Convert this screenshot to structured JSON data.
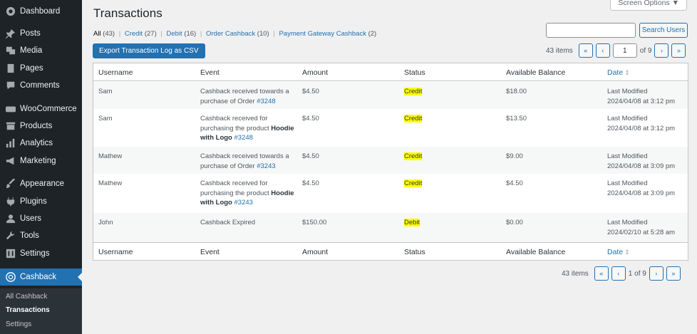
{
  "sidebar": {
    "items": [
      {
        "label": "Dashboard",
        "icon": "dashboard-icon"
      },
      {
        "label": "Posts",
        "icon": "pin-icon"
      },
      {
        "label": "Media",
        "icon": "media-icon"
      },
      {
        "label": "Pages",
        "icon": "page-icon"
      },
      {
        "label": "Comments",
        "icon": "comment-icon"
      },
      {
        "label": "WooCommerce",
        "icon": "woo-icon"
      },
      {
        "label": "Products",
        "icon": "archive-icon"
      },
      {
        "label": "Analytics",
        "icon": "bar-chart-icon"
      },
      {
        "label": "Marketing",
        "icon": "megaphone-icon"
      },
      {
        "label": "Appearance",
        "icon": "brush-icon"
      },
      {
        "label": "Plugins",
        "icon": "plug-icon"
      },
      {
        "label": "Users",
        "icon": "user-icon"
      },
      {
        "label": "Tools",
        "icon": "wrench-icon"
      },
      {
        "label": "Settings",
        "icon": "settings-icon"
      },
      {
        "label": "Cashback",
        "icon": "cashback-icon"
      }
    ],
    "submenu": [
      "All Cashback",
      "Transactions",
      "Settings"
    ]
  },
  "page": {
    "title": "Transactions",
    "screen_options": "Screen Options ▼",
    "export_button": "Export Transaction Log as CSV",
    "search_button": "Search Users",
    "search_value": ""
  },
  "filters": {
    "all": "All",
    "all_count": "(43)",
    "credit": "Credit",
    "credit_count": "(27)",
    "debit": "Debit",
    "debit_count": "(16)",
    "order": "Order Cashback",
    "order_count": "(10)",
    "gateway": "Payment Gateway Cashback",
    "gateway_count": "(2)",
    "sep": "|"
  },
  "pagination_top": {
    "items": "43 items",
    "first": "«",
    "prev": "‹",
    "current_page": "1",
    "of_text": "of 9",
    "next": "›",
    "last": "»"
  },
  "pagination_bottom": {
    "items": "43 items",
    "first": "«",
    "prev": "‹",
    "page_text": "1 of 9",
    "next": "›",
    "last": "»"
  },
  "table": {
    "columns": {
      "username": "Username",
      "event": "Event",
      "amount": "Amount",
      "status": "Status",
      "balance": "Available Balance",
      "date": "Date",
      "sort_icon": "⇕"
    },
    "rows": [
      {
        "username": "Sam",
        "event_text": "Cashback received towards a purchase of Order",
        "product": "",
        "order_link": "#3248",
        "amount": "$4.50",
        "status": "Credit",
        "balance": "$18.00",
        "date_label": "Last Modified",
        "date_value": "2024/04/08 at 3:12 pm"
      },
      {
        "username": "Sam",
        "event_text": "Cashback received for purchasing the product",
        "product": "Hoodie with Logo",
        "order_link": "#3248",
        "amount": "$4.50",
        "status": "Credit",
        "balance": "$13.50",
        "date_label": "Last Modified",
        "date_value": "2024/04/08 at 3:12 pm"
      },
      {
        "username": "Mathew",
        "event_text": "Cashback received towards a purchase of Order",
        "product": "",
        "order_link": "#3243",
        "amount": "$4.50",
        "status": "Credit",
        "balance": "$9.00",
        "date_label": "Last Modified",
        "date_value": "2024/04/08 at 3:09 pm"
      },
      {
        "username": "Mathew",
        "event_text": "Cashback received for purchasing the product",
        "product": "Hoodie with Logo",
        "order_link": "#3243",
        "amount": "$4.50",
        "status": "Credit",
        "balance": "$4.50",
        "date_label": "Last Modified",
        "date_value": "2024/04/08 at 3:09 pm"
      },
      {
        "username": "John",
        "event_text": "Cashback Expired",
        "product": "",
        "order_link": "",
        "amount": "$150.00",
        "status": "Debit",
        "balance": "$0.00",
        "date_label": "Last Modified",
        "date_value": "2024/02/10 at 5:28 am"
      }
    ]
  },
  "colors": {
    "sidebar_bg": "#1d2327",
    "accent": "#2271b1",
    "status_highlight": "#ffff00"
  }
}
